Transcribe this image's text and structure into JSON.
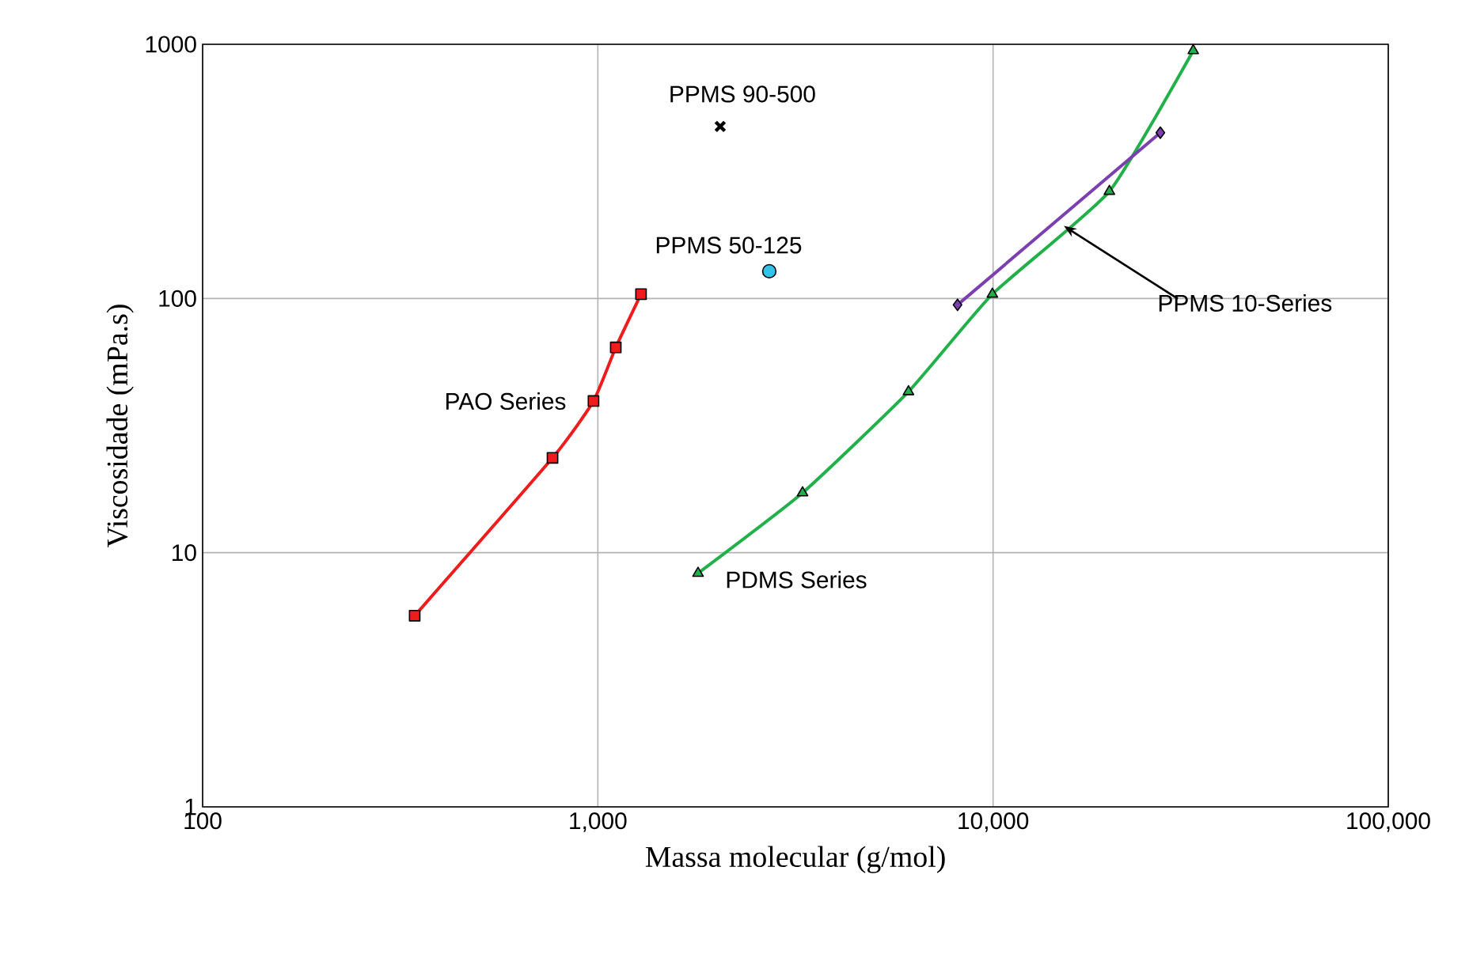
{
  "chart_data": {
    "type": "line",
    "xlabel": "Massa molecular (g/mol)",
    "ylabel": "Viscosidade (mPa.s)",
    "log": "xy",
    "grid": true,
    "xlim": [
      100,
      100000
    ],
    "ylim": [
      1,
      1000
    ],
    "xticks": [
      100,
      {
        "value": 1000,
        "label": "1,000"
      },
      {
        "value": 10000,
        "label": "10,000"
      },
      {
        "value": 100000,
        "label": "100,000"
      }
    ],
    "yticks": [
      1,
      10,
      100,
      1000
    ],
    "series": [
      {
        "marker": "square",
        "color": "#ee1c1c",
        "x": [
          344,
          768,
          975,
          1110,
          1286
        ],
        "values": [
          5.65,
          23.6,
          39.5,
          64.2,
          104
        ]
      },
      {
        "marker": "triangle",
        "color": "#22b04a",
        "x": [
          1793,
          3296,
          6110,
          9960,
          19700,
          32100
        ],
        "values": [
          8.3,
          17.2,
          43,
          104,
          264,
          944
        ]
      },
      {
        "marker": "diamond",
        "color": "#7b3fb0",
        "x": [
          8130,
          26500
        ],
        "values": [
          94.4,
          449
        ]
      },
      {
        "type": "scatter",
        "marker": "circle",
        "color": "#33c3e8",
        "x": [
          2715
        ],
        "values": [
          128
        ]
      },
      {
        "type": "scatter",
        "marker": "cross",
        "color": "#000000",
        "x": [
          2040
        ],
        "values": [
          475
        ]
      }
    ],
    "annotations": [
      {
        "text": "PPMS 90-500",
        "x": 2040,
        "y": 475
      },
      {
        "text": "PPMS 50-125",
        "x": 2715,
        "y": 128
      },
      {
        "text": "PAO Series",
        "x": 975,
        "y": 39.5
      },
      {
        "text": "PDMS Series",
        "x": 1793,
        "y": 8.3
      },
      {
        "text": "PPMS 10-Series",
        "x": 15100,
        "y": 193
      }
    ]
  }
}
